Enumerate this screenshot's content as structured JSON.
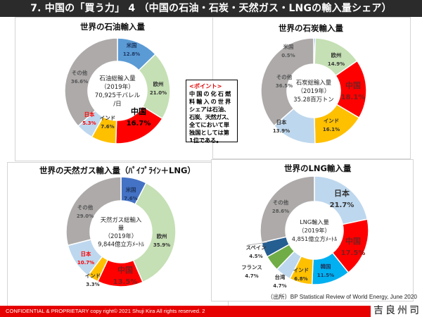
{
  "header": {
    "title": "7. 中国の「買う力」 4 （中国の石油・石炭・天然ガス・LNGの輸入量シェア）"
  },
  "note": {
    "heading": "<ポイント>",
    "lines": [
      "中国の化石燃",
      "料輸入の世界",
      "シェアは石油、",
      "石炭、天然ガス、",
      "全てにおいて単",
      "独国としては第",
      "1位である。"
    ]
  },
  "source": "（出所）BP Statistical Review of World Energy, June 2020",
  "footer": {
    "text": "CONFIDENTIAL & PROPRIETARY  copy right© 2021   Shuji Kira All rights reserved.   2",
    "logo": "吉良州司"
  },
  "chart_data": [
    {
      "type": "pie",
      "id": "oil",
      "title": "世界の石油輸入量",
      "center_label": [
        "石油総輸入量",
        "（2019年）",
        "70,925千バレル",
        "/日"
      ],
      "slices": [
        {
          "label": "米国",
          "value": 12.8,
          "value_text": "12.8%",
          "color": "#5b9bd5",
          "text_color": "#1f3864"
        },
        {
          "label": "欧州",
          "value": 21.0,
          "value_text": "21.0%",
          "color": "#c5e0b4",
          "text_color": "#333333"
        },
        {
          "label": "中国",
          "value": 16.7,
          "value_text": "16.7%",
          "color": "#ff0000",
          "text_color": "#000000"
        },
        {
          "label": "インド",
          "value": 7.6,
          "value_text": "7.6%",
          "color": "#ffc000",
          "text_color": "#333333"
        },
        {
          "label": "日本",
          "value": 5.3,
          "value_text": "5.3%",
          "color": "#bdd7ee",
          "text_color": "#ff0000"
        },
        {
          "label": "その他",
          "value": 36.6,
          "value_text": "36.6%",
          "color": "#aeaaaa",
          "text_color": "#555555"
        }
      ]
    },
    {
      "type": "pie",
      "id": "coal",
      "title": "世界の石炭輸入量",
      "center_label": [
        "石炭総輸入量",
        "（2019年）",
        "35.28百万トン"
      ],
      "slices": [
        {
          "label": "米国",
          "value": 0.5,
          "value_text": "0.5%",
          "color": "#5b9bd5",
          "text_color": "#555555"
        },
        {
          "label": "欧州",
          "value": 14.9,
          "value_text": "14.9%",
          "color": "#c5e0b4",
          "text_color": "#333333"
        },
        {
          "label": "中国",
          "value": 18.1,
          "value_text": "18.1%",
          "color": "#ff0000",
          "text_color": "#7f1d1d"
        },
        {
          "label": "インド",
          "value": 16.1,
          "value_text": "16.1%",
          "color": "#ffc000",
          "text_color": "#333333"
        },
        {
          "label": "日本",
          "value": 13.9,
          "value_text": "13.9%",
          "color": "#bdd7ee",
          "text_color": "#333333"
        },
        {
          "label": "その他",
          "value": 36.5,
          "value_text": "36.5%",
          "color": "#aeaaaa",
          "text_color": "#555555"
        }
      ]
    },
    {
      "type": "pie",
      "id": "gas",
      "title": "世界の天然ガス輸入量（ﾊﾟｲﾌﾟﾗｲﾝ＋LNG）",
      "center_label": [
        "天然ガス総輸入",
        "量",
        "（2019年）",
        "9,844億立方ﾒｰﾄﾙ"
      ],
      "slices": [
        {
          "label": "米国",
          "value": 7.6,
          "value_text": "7.6%",
          "color": "#4472c4",
          "text_color": "#1f3864"
        },
        {
          "label": "欧州",
          "value": 35.9,
          "value_text": "35.9%",
          "color": "#c5e0b4",
          "text_color": "#333333"
        },
        {
          "label": "中国",
          "value": 13.5,
          "value_text": "13.5%",
          "color": "#ff0000",
          "text_color": "#7f1d1d"
        },
        {
          "label": "インド",
          "value": 3.3,
          "value_text": "3.3%",
          "color": "#ffc000",
          "text_color": "#333333"
        },
        {
          "label": "日本",
          "value": 10.7,
          "value_text": "10.7%",
          "color": "#bdd7ee",
          "text_color": "#ff0000"
        },
        {
          "label": "その他",
          "value": 29.0,
          "value_text": "29.0%",
          "color": "#aeaaaa",
          "text_color": "#555555"
        }
      ]
    },
    {
      "type": "pie",
      "id": "lng",
      "title": "世界のLNG輸入量",
      "center_label": [
        "LNG輸入量",
        "（2019年）",
        "4,851億立方ﾒｰﾄﾙ"
      ],
      "slices": [
        {
          "label": "日本",
          "value": 21.7,
          "value_text": "21.7%",
          "color": "#bdd7ee",
          "text_color": "#333333"
        },
        {
          "label": "中国",
          "value": 17.5,
          "value_text": "17.5%",
          "color": "#ff0000",
          "text_color": "#7f1d1d"
        },
        {
          "label": "韓国",
          "value": 11.5,
          "value_text": "11.5%",
          "color": "#00b0f0",
          "text_color": "#1f3864"
        },
        {
          "label": "インド",
          "value": 6.8,
          "value_text": "6.8%",
          "color": "#ffc000",
          "text_color": "#333333"
        },
        {
          "label": "台湾",
          "value": 4.7,
          "value_text": "4.7%",
          "color": "#bdd7ee",
          "text_color": "#333333"
        },
        {
          "label": "フランス",
          "value": 4.7,
          "value_text": "4.7%",
          "color": "#70ad47",
          "text_color": "#333333"
        },
        {
          "label": "スペイン",
          "value": 4.5,
          "value_text": "4.5%",
          "color": "#255e91",
          "text_color": "#333333"
        },
        {
          "label": "その他",
          "value": 28.6,
          "value_text": "28.6%",
          "color": "#aeaaaa",
          "text_color": "#555555"
        }
      ]
    }
  ]
}
